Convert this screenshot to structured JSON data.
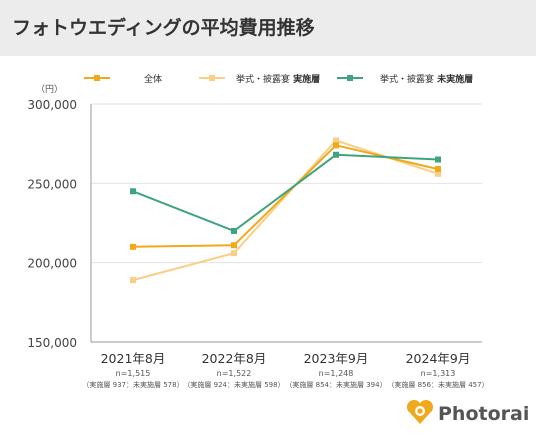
{
  "page": {
    "title": "フォトウエディングの平均費用推移"
  },
  "chart_data": {
    "type": "line",
    "title": "フォトウエディングの平均費用推移",
    "unit_label": "（円）",
    "categories": [
      "2021年8月",
      "2022年8月",
      "2023年9月",
      "2024年9月"
    ],
    "sample_sizes": [
      "n=1,515",
      "n=1,522",
      "n=1,248",
      "n=1,313"
    ],
    "sample_breakdowns": [
      "（実施層 937：未実施層 578）",
      "（実施層 924：未実施層 598）",
      "（実施層 854：未実施層 394）",
      "（実施層 856：未実施層 457）"
    ],
    "y_ticks": [
      "300,000",
      "250,000",
      "200,000",
      "150,000"
    ],
    "ylim": [
      150000,
      300000
    ],
    "grid": true,
    "legend_position": "top",
    "series": [
      {
        "name": "全体",
        "name_plain": "全体",
        "name_bold": "",
        "color": "#f0a81d",
        "values": [
          210000,
          211000,
          274000,
          259000
        ]
      },
      {
        "name": "挙式・披露宴 実施層",
        "name_plain": "挙式・披露宴",
        "name_bold": "実施層",
        "color": "#f8cf85",
        "values": [
          189000,
          206000,
          277000,
          256000
        ]
      },
      {
        "name": "挙式・披露宴 未実施層",
        "name_plain": "挙式・披露宴",
        "name_bold": "未実施層",
        "color": "#3fa47e",
        "values": [
          245000,
          220000,
          268000,
          265000
        ]
      }
    ]
  },
  "logo": {
    "text": "Photorait",
    "color": "#f0a81d"
  }
}
